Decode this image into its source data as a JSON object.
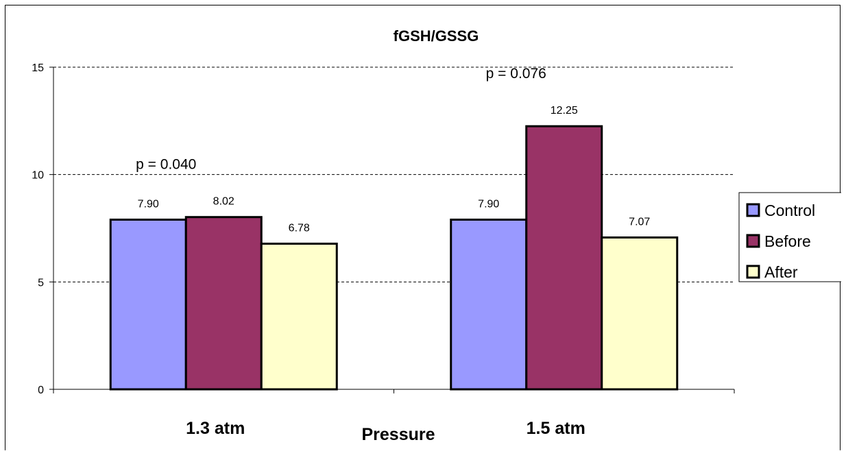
{
  "chart_data": {
    "type": "bar",
    "title": "fGSH/GSSG",
    "xlabel": "Pressure",
    "ylabel": "",
    "categories": [
      "1.3 atm",
      "1.5 atm"
    ],
    "series": [
      {
        "name": "Control",
        "values": [
          7.9,
          7.9
        ],
        "labels": [
          "7.90",
          "7.90"
        ],
        "color": "#9999ff"
      },
      {
        "name": "Before",
        "values": [
          8.02,
          12.25
        ],
        "labels": [
          "8.02",
          "12.25"
        ],
        "color": "#993366"
      },
      {
        "name": "After",
        "values": [
          6.78,
          7.07
        ],
        "labels": [
          "6.78",
          "7.07"
        ],
        "color": "#ffffcc"
      }
    ],
    "ylim": [
      0,
      15
    ],
    "yticks": [
      0,
      5,
      10,
      15
    ],
    "grid": "horizontal-dashed",
    "legend": "right",
    "annotations": [
      "p = 0.040",
      "p = 0.076"
    ]
  }
}
